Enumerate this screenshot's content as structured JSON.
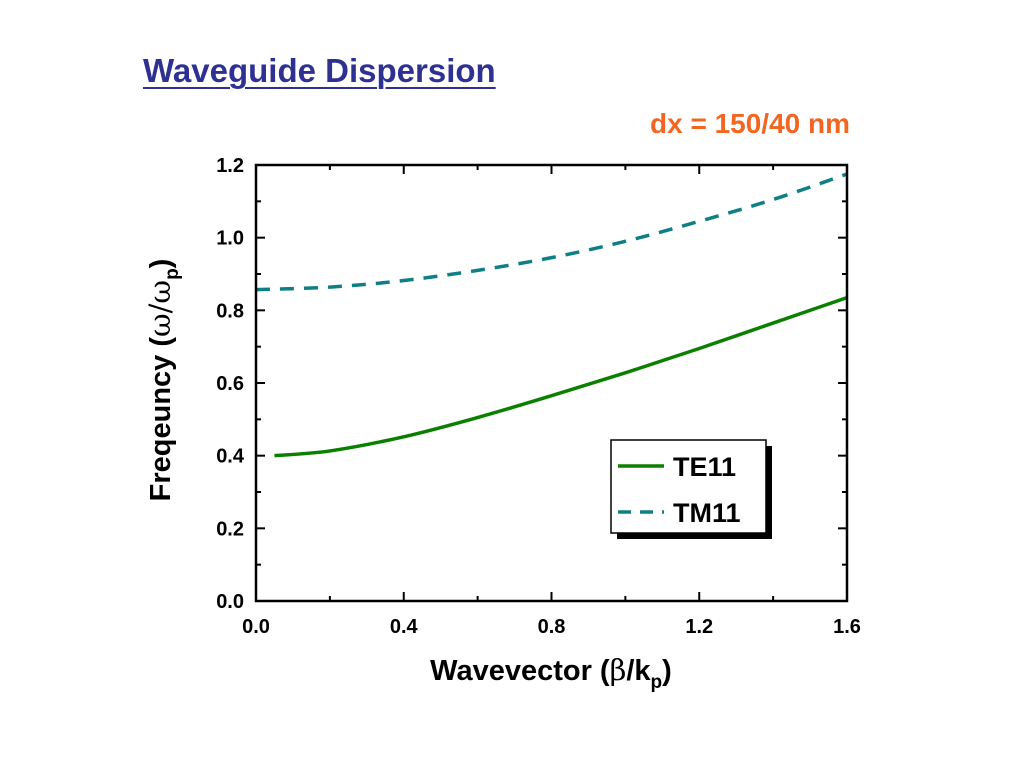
{
  "slide": {
    "title": "Waveguide Dispersion",
    "subtitle": "dx = 150/40 nm"
  },
  "colors": {
    "title": "#2E3192",
    "subtitle": "#F26522",
    "te11": "#0B8000",
    "tm11": "#0F7F86"
  },
  "chart_data": {
    "type": "line",
    "xlabel_parts": {
      "pre": "Wavevector (",
      "sym": "β",
      "mid": "/k",
      "sub": "p",
      "post": ")"
    },
    "ylabel_parts": {
      "pre": "Freqeuncy (",
      "sym": "ω",
      "mid": "/ω",
      "sub": "p",
      "post": ")"
    },
    "xlim": [
      0.0,
      1.6
    ],
    "ylim": [
      0.0,
      1.2
    ],
    "xticks": [
      "0.0",
      "0.4",
      "0.8",
      "1.2",
      "1.6"
    ],
    "yticks": [
      "0.0",
      "0.2",
      "0.4",
      "0.6",
      "0.8",
      "1.0",
      "1.2"
    ],
    "xtick_values": [
      0.0,
      0.4,
      0.8,
      1.2,
      1.6
    ],
    "ytick_values": [
      0.0,
      0.2,
      0.4,
      0.6,
      0.8,
      1.0,
      1.2
    ],
    "legend_position": "lower-right",
    "grid": false,
    "series": [
      {
        "name": "TE11",
        "style": "solid",
        "x": [
          0.05,
          0.2,
          0.4,
          0.6,
          0.8,
          1.0,
          1.2,
          1.4,
          1.6
        ],
        "y": [
          0.4,
          0.413,
          0.452,
          0.505,
          0.565,
          0.628,
          0.695,
          0.765,
          0.835
        ]
      },
      {
        "name": "TM11",
        "style": "dashed",
        "x": [
          0.0,
          0.2,
          0.4,
          0.6,
          0.8,
          1.0,
          1.2,
          1.4,
          1.6
        ],
        "y": [
          0.857,
          0.864,
          0.882,
          0.91,
          0.945,
          0.99,
          1.045,
          1.105,
          1.175
        ]
      }
    ]
  }
}
